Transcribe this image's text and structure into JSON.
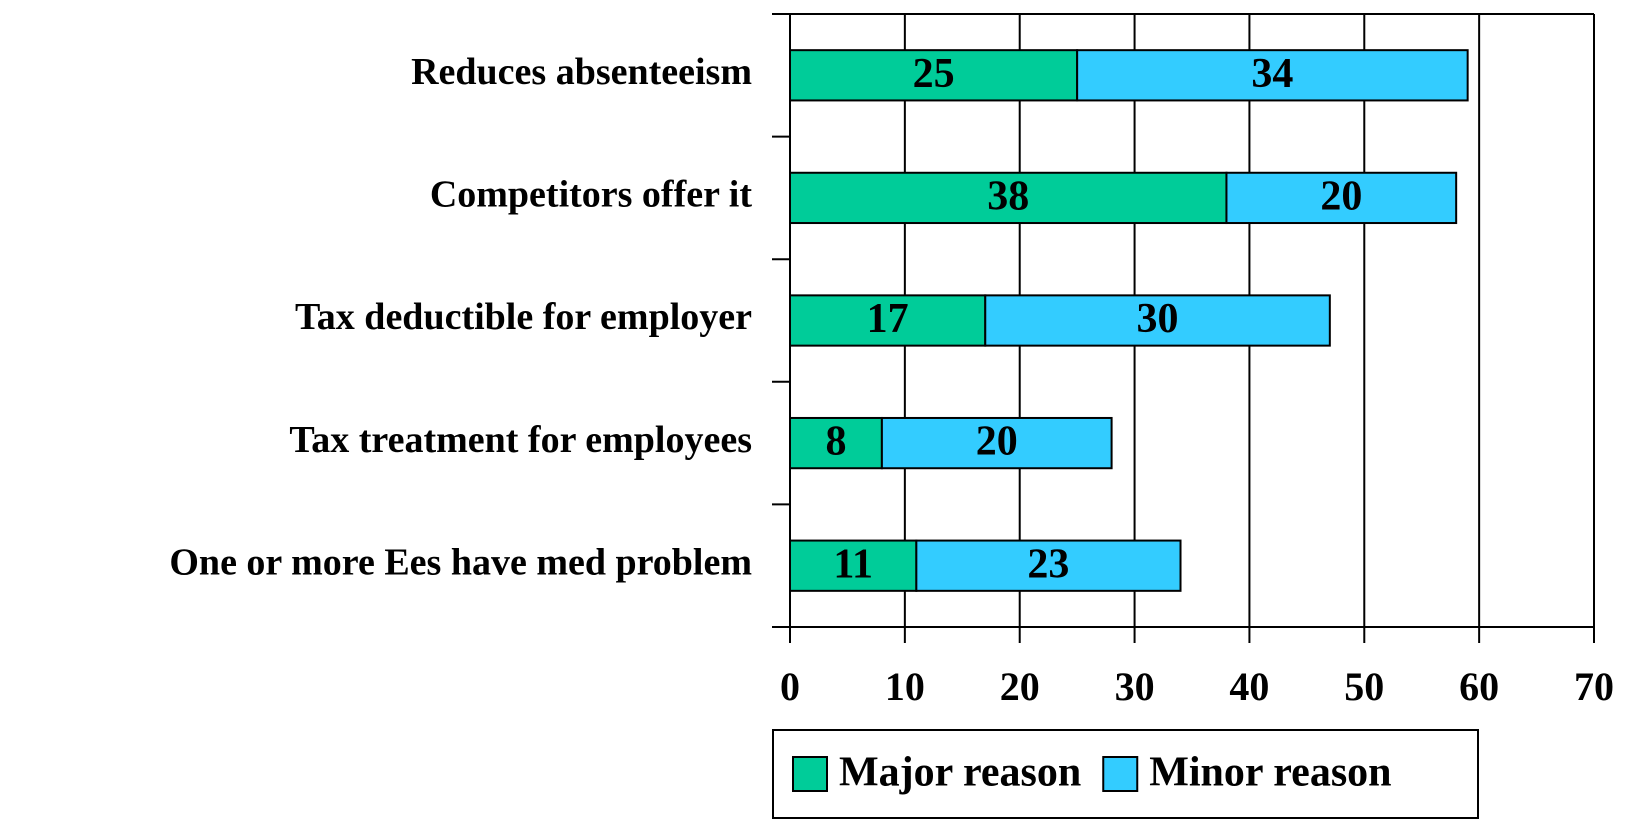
{
  "chart_data": {
    "type": "bar",
    "orientation": "horizontal",
    "stacked": true,
    "categories": [
      "Reduces absenteeism",
      "Competitors offer it",
      "Tax deductible for employer",
      "Tax treatment for employees",
      "One or more Ees have med problem"
    ],
    "series": [
      {
        "name": "Major reason",
        "color": "#00cc99",
        "values": [
          25,
          38,
          17,
          8,
          11
        ]
      },
      {
        "name": "Minor reason",
        "color": "#33ccff",
        "values": [
          34,
          20,
          30,
          20,
          23
        ]
      }
    ],
    "xlim": [
      0,
      70
    ],
    "xticks": [
      0,
      10,
      20,
      30,
      40,
      50,
      60,
      70
    ],
    "grid": true,
    "legend": "bottom"
  }
}
